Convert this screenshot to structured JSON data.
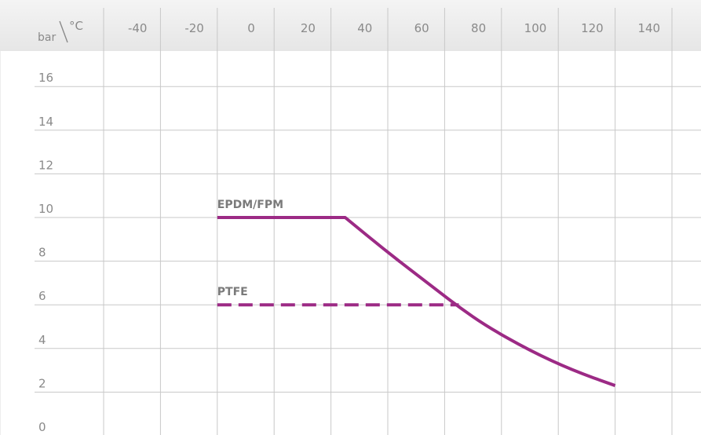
{
  "chart_data": {
    "type": "line",
    "corner_label": {
      "y_unit": "bar",
      "x_unit": "°C"
    },
    "x_ticks": [
      -40,
      -20,
      0,
      20,
      40,
      60,
      80,
      100,
      120,
      140
    ],
    "y_ticks": [
      16,
      14,
      12,
      10,
      8,
      6,
      4,
      2,
      0
    ],
    "xlim": [
      -55,
      165
    ],
    "ylim": [
      0,
      18
    ],
    "grid": true,
    "colors": {
      "series": "#9c2a85",
      "grid": "#c8c8c8",
      "header": "#eeeeee",
      "text": "#8a8a8a"
    },
    "series": [
      {
        "name": "EPDM/FPM",
        "style": "solid",
        "points": [
          [
            -10,
            10
          ],
          [
            35,
            10
          ],
          [
            50,
            8.4
          ],
          [
            65,
            6.9
          ],
          [
            75,
            5.9
          ],
          [
            85,
            5.0
          ],
          [
            100,
            3.9
          ],
          [
            115,
            3.0
          ],
          [
            130,
            2.3
          ]
        ]
      },
      {
        "name": "PTFE",
        "style": "dashed",
        "points": [
          [
            -10,
            6
          ],
          [
            75,
            6
          ]
        ]
      }
    ]
  }
}
